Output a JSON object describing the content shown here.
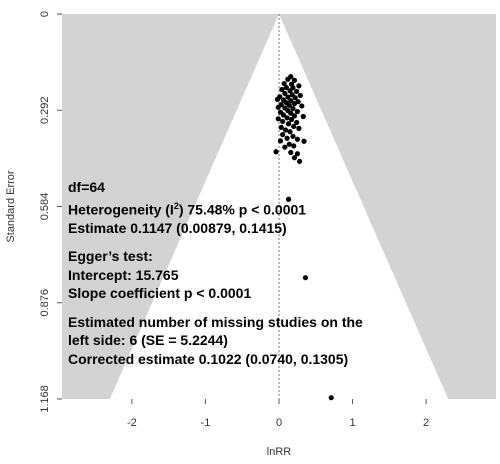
{
  "chart_data": {
    "type": "scatter",
    "subtype": "funnel",
    "xlabel": "lnRR",
    "ylabel": "Standard Error",
    "x_ticks": [
      "-2",
      "-1",
      "0",
      "1",
      "2"
    ],
    "y_ticks": [
      "0",
      "0.292",
      "0.584",
      "0.876",
      "1.168"
    ],
    "x_tick_values": [
      -2,
      -1,
      0,
      1,
      2
    ],
    "y_tick_values": [
      0,
      0.292,
      0.584,
      0.876,
      1.168
    ],
    "xlim": [
      -2.95,
      2.95
    ],
    "ylim": [
      0,
      1.168
    ],
    "y_reversed": true,
    "funnel_center": 0,
    "funnel_base_half_width_at_ylim": 2.3,
    "background_color": "#d3d3d3",
    "funnel_color": "#ffffff",
    "point_color": "#000000",
    "points": [
      {
        "x": 0.16,
        "y": 0.19
      },
      {
        "x": 0.12,
        "y": 0.198
      },
      {
        "x": 0.21,
        "y": 0.201
      },
      {
        "x": 0.07,
        "y": 0.211
      },
      {
        "x": 0.17,
        "y": 0.213
      },
      {
        "x": 0.27,
        "y": 0.218
      },
      {
        "x": 0.1,
        "y": 0.223
      },
      {
        "x": 0.19,
        "y": 0.224
      },
      {
        "x": 0.04,
        "y": 0.229
      },
      {
        "x": 0.15,
        "y": 0.233
      },
      {
        "x": 0.24,
        "y": 0.235
      },
      {
        "x": 0.08,
        "y": 0.241
      },
      {
        "x": 0.18,
        "y": 0.245
      },
      {
        "x": 0.29,
        "y": 0.247
      },
      {
        "x": 0.01,
        "y": 0.251
      },
      {
        "x": 0.12,
        "y": 0.252
      },
      {
        "x": 0.22,
        "y": 0.254
      },
      {
        "x": -0.02,
        "y": 0.259
      },
      {
        "x": 0.06,
        "y": 0.261
      },
      {
        "x": 0.16,
        "y": 0.263
      },
      {
        "x": 0.26,
        "y": 0.266
      },
      {
        "x": 0.1,
        "y": 0.269
      },
      {
        "x": 0.21,
        "y": 0.272
      },
      {
        "x": 0.03,
        "y": 0.275
      },
      {
        "x": 0.14,
        "y": 0.277
      },
      {
        "x": 0.31,
        "y": 0.279
      },
      {
        "x": -0.01,
        "y": 0.283
      },
      {
        "x": 0.08,
        "y": 0.285
      },
      {
        "x": 0.19,
        "y": 0.287
      },
      {
        "x": 0.12,
        "y": 0.293
      },
      {
        "x": 0.25,
        "y": 0.296
      },
      {
        "x": 0.02,
        "y": 0.298
      },
      {
        "x": 0.16,
        "y": 0.301
      },
      {
        "x": 0.06,
        "y": 0.306
      },
      {
        "x": 0.21,
        "y": 0.309
      },
      {
        "x": 0.33,
        "y": 0.311
      },
      {
        "x": 0.11,
        "y": 0.315
      },
      {
        "x": -0.01,
        "y": 0.318
      },
      {
        "x": 0.17,
        "y": 0.32
      },
      {
        "x": 0.05,
        "y": 0.326
      },
      {
        "x": 0.24,
        "y": 0.329
      },
      {
        "x": 0.13,
        "y": 0.333
      },
      {
        "x": 0.2,
        "y": 0.341
      },
      {
        "x": 0.03,
        "y": 0.344
      },
      {
        "x": 0.27,
        "y": 0.347
      },
      {
        "x": 0.09,
        "y": 0.352
      },
      {
        "x": 0.15,
        "y": 0.357
      },
      {
        "x": 0.05,
        "y": 0.366
      },
      {
        "x": 0.19,
        "y": 0.371
      },
      {
        "x": 0.11,
        "y": 0.377
      },
      {
        "x": 0.25,
        "y": 0.38
      },
      {
        "x": 0.02,
        "y": 0.385
      },
      {
        "x": 0.34,
        "y": 0.386
      },
      {
        "x": 0.14,
        "y": 0.395
      },
      {
        "x": 0.2,
        "y": 0.4
      },
      {
        "x": 0.08,
        "y": 0.404
      },
      {
        "x": -0.04,
        "y": 0.418
      },
      {
        "x": 0.16,
        "y": 0.42
      },
      {
        "x": 0.25,
        "y": 0.424
      },
      {
        "x": 0.21,
        "y": 0.436
      },
      {
        "x": 0.28,
        "y": 0.447
      },
      {
        "x": 0.13,
        "y": 0.562
      },
      {
        "x": 0.36,
        "y": 0.8
      },
      {
        "x": 0.71,
        "y": 1.164
      }
    ],
    "annotation_lines": [
      "df=64",
      "Heterogeneity (I²) 75.48% p < 0.0001",
      "Estimate 0.1147 (0.00879, 0.1415)",
      "",
      "Egger’s test:",
      "Intercept: 15.765",
      "Slope coefficient p < 0.0001",
      "",
      "Estimated number of missing studies on the",
      "left side: 6 (SE = 5.2244)",
      "Corrected estimate 0.1022 (0.0740, 0.1305)"
    ]
  }
}
